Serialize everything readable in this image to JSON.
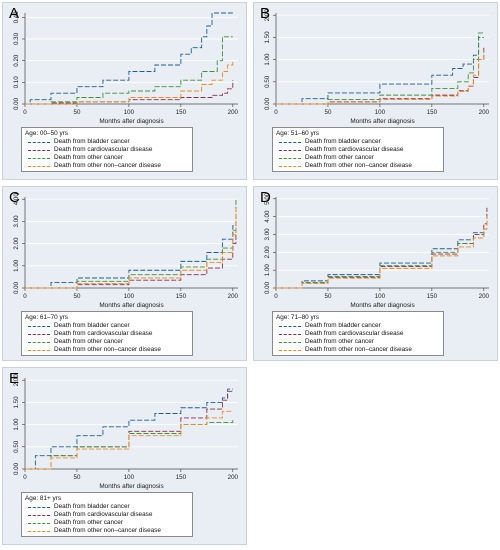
{
  "figure": {
    "colors": {
      "bladder": "#1f5c91",
      "cardio": "#8b2d4a",
      "other_cancer": "#3d8f3d",
      "non_cancer": "#f08a24",
      "panel_bg": "#e8eef3",
      "grid": "#ffffff"
    }
  },
  "chart_data": [
    {
      "panel": "A",
      "type": "line",
      "title": "",
      "xlabel": "Months after diagnosis",
      "ylabel": "",
      "xlim": [
        0,
        205
      ],
      "ylim": [
        0,
        0.42
      ],
      "xticks": [
        "0",
        "50",
        "100",
        "150",
        "200"
      ],
      "yticks": [
        "0.00",
        "0.10",
        "0.20",
        "0.30",
        "0.40"
      ],
      "grid": true,
      "legend": {
        "title": "Age: 00–50 yrs",
        "entries": [
          "Death from bladder cancer",
          "Death from cardiovascular disease",
          "Death from other cancer",
          "Death from other non–cancer disease"
        ]
      },
      "series": [
        {
          "name": "Death from bladder cancer",
          "x": [
            0,
            5,
            25,
            50,
            75,
            100,
            125,
            150,
            160,
            170,
            175,
            180,
            200
          ],
          "y": [
            0,
            0.02,
            0.05,
            0.08,
            0.11,
            0.15,
            0.18,
            0.23,
            0.26,
            0.31,
            0.36,
            0.42,
            0.42
          ]
        },
        {
          "name": "Death from cardiovascular disease",
          "x": [
            0,
            25,
            50,
            100,
            150,
            180,
            190,
            195,
            200
          ],
          "y": [
            0,
            0.005,
            0.01,
            0.02,
            0.03,
            0.04,
            0.05,
            0.07,
            0.11
          ]
        },
        {
          "name": "Death from other cancer",
          "x": [
            0,
            25,
            50,
            75,
            100,
            125,
            150,
            170,
            185,
            190,
            200
          ],
          "y": [
            0,
            0.01,
            0.03,
            0.05,
            0.06,
            0.08,
            0.11,
            0.15,
            0.2,
            0.31,
            0.31
          ]
        },
        {
          "name": "Death from other non–cancer disease",
          "x": [
            0,
            50,
            100,
            150,
            170,
            180,
            190,
            195,
            200
          ],
          "y": [
            0,
            0.01,
            0.03,
            0.06,
            0.09,
            0.11,
            0.15,
            0.18,
            0.2
          ]
        }
      ]
    },
    {
      "panel": "B",
      "type": "line",
      "title": "",
      "xlabel": "Months after diagnosis",
      "ylabel": "",
      "xlim": [
        0,
        205
      ],
      "ylim": [
        0,
        2.05
      ],
      "xticks": [
        "0",
        "50",
        "100",
        "150",
        "200"
      ],
      "yticks": [
        "0.00",
        "0.50",
        "1.00",
        "1.50",
        "2.00"
      ],
      "grid": true,
      "legend": {
        "title": "Age: 51–60 yrs",
        "entries": [
          "Death from bladder cancer",
          "Death from cardiovascular disease",
          "Death from other cancer",
          "Death from other non–cancer disease"
        ]
      },
      "series": [
        {
          "name": "Death from bladder cancer",
          "x": [
            0,
            25,
            50,
            100,
            150,
            170,
            180,
            190,
            195,
            200
          ],
          "y": [
            0,
            0.12,
            0.25,
            0.45,
            0.65,
            0.8,
            0.9,
            1.1,
            1.5,
            1.5
          ]
        },
        {
          "name": "Death from cardiovascular disease",
          "x": [
            0,
            50,
            100,
            150,
            175,
            185,
            190,
            195,
            200
          ],
          "y": [
            0,
            0.05,
            0.12,
            0.2,
            0.3,
            0.4,
            0.6,
            1.0,
            1.3
          ]
        },
        {
          "name": "Death from other cancer",
          "x": [
            0,
            50,
            100,
            150,
            175,
            185,
            190,
            195,
            200
          ],
          "y": [
            0,
            0.1,
            0.2,
            0.35,
            0.5,
            0.7,
            1.0,
            1.6,
            1.6
          ]
        },
        {
          "name": "Death from other non–cancer disease",
          "x": [
            0,
            50,
            100,
            150,
            175,
            185,
            190,
            195,
            200
          ],
          "y": [
            0,
            0.04,
            0.1,
            0.18,
            0.28,
            0.4,
            0.65,
            1.0,
            1.2
          ]
        }
      ]
    },
    {
      "panel": "C",
      "type": "line",
      "title": "",
      "xlabel": "Months after diagnosis",
      "ylabel": "",
      "xlim": [
        0,
        205
      ],
      "ylim": [
        0,
        4.1
      ],
      "xticks": [
        "0",
        "50",
        "100",
        "150",
        "200"
      ],
      "yticks": [
        "0.00",
        "1.00",
        "2.00",
        "3.00",
        "4.00"
      ],
      "grid": true,
      "legend": {
        "title": "Age: 61–70 yrs",
        "entries": [
          "Death from bladder cancer",
          "Death from cardiovascular disease",
          "Death from other cancer",
          "Death from other non–cancer disease"
        ]
      },
      "series": [
        {
          "name": "Death from bladder cancer",
          "x": [
            0,
            25,
            50,
            100,
            150,
            175,
            190,
            200,
            203
          ],
          "y": [
            0,
            0.25,
            0.45,
            0.8,
            1.2,
            1.6,
            2.2,
            2.8,
            3.5
          ]
        },
        {
          "name": "Death from cardiovascular disease",
          "x": [
            0,
            50,
            100,
            150,
            175,
            190,
            200,
            203
          ],
          "y": [
            0,
            0.15,
            0.35,
            0.6,
            0.9,
            1.3,
            2.0,
            3.0
          ]
        },
        {
          "name": "Death from other cancer",
          "x": [
            0,
            50,
            100,
            150,
            175,
            190,
            200,
            203
          ],
          "y": [
            0,
            0.3,
            0.6,
            0.95,
            1.3,
            1.8,
            2.6,
            4.0
          ]
        },
        {
          "name": "Death from other non–cancer disease",
          "x": [
            0,
            50,
            100,
            150,
            175,
            190,
            200,
            203
          ],
          "y": [
            0,
            0.2,
            0.45,
            0.8,
            1.15,
            1.6,
            2.4,
            3.6
          ]
        }
      ]
    },
    {
      "panel": "D",
      "type": "line",
      "title": "",
      "xlabel": "Months after diagnosis",
      "ylabel": "",
      "xlim": [
        0,
        205
      ],
      "ylim": [
        0,
        5.1
      ],
      "xticks": [
        "0",
        "50",
        "100",
        "150",
        "200"
      ],
      "yticks": [
        "0.00",
        "1.00",
        "2.00",
        "3.00",
        "4.00",
        "5.00"
      ],
      "grid": true,
      "legend": {
        "title": "Age: 71–80 yrs",
        "entries": [
          "Death from bladder cancer",
          "Death from cardiovascular disease",
          "Death from other cancer",
          "Death from other non–cancer disease"
        ]
      },
      "series": [
        {
          "name": "Death from bladder cancer",
          "x": [
            0,
            25,
            50,
            100,
            150,
            175,
            190,
            200
          ],
          "y": [
            0,
            0.4,
            0.75,
            1.4,
            2.2,
            2.7,
            3.1,
            3.3
          ]
        },
        {
          "name": "Death from cardiovascular disease",
          "x": [
            0,
            25,
            50,
            100,
            150,
            175,
            190,
            200,
            203
          ],
          "y": [
            0,
            0.3,
            0.6,
            1.2,
            1.9,
            2.5,
            3.0,
            3.6,
            4.5
          ]
        },
        {
          "name": "Death from other cancer",
          "x": [
            0,
            25,
            50,
            100,
            150,
            175,
            190,
            200
          ],
          "y": [
            0,
            0.3,
            0.65,
            1.25,
            2.0,
            2.5,
            2.8,
            3.2
          ]
        },
        {
          "name": "Death from other non–cancer disease",
          "x": [
            0,
            25,
            50,
            100,
            150,
            175,
            190,
            200,
            203
          ],
          "y": [
            0,
            0.25,
            0.55,
            1.1,
            1.8,
            2.3,
            2.8,
            3.3,
            4.0
          ]
        }
      ]
    },
    {
      "panel": "E",
      "type": "line",
      "title": "",
      "xlabel": "Months after diagnosis",
      "ylabel": "",
      "xlim": [
        0,
        205
      ],
      "ylim": [
        0,
        2.05
      ],
      "xticks": [
        "0",
        "50",
        "100",
        "150",
        "200"
      ],
      "yticks": [
        "0.00",
        "0.50",
        "1.00",
        "1.50",
        "2.00"
      ],
      "grid": true,
      "legend": {
        "title": "Age: 81+ yrs",
        "entries": [
          "Death from bladder cancer",
          "Death from cardiovascular disease",
          "Death from other cancer",
          "Death from other non–cancer disease"
        ]
      },
      "series": [
        {
          "name": "Death from bladder cancer",
          "x": [
            0,
            10,
            25,
            50,
            75,
            100,
            125,
            150,
            175,
            190,
            195,
            200
          ],
          "y": [
            0,
            0.3,
            0.5,
            0.75,
            0.95,
            1.1,
            1.25,
            1.38,
            1.5,
            1.6,
            1.8,
            1.8
          ]
        },
        {
          "name": "Death from cardiovascular disease",
          "x": [
            0,
            25,
            50,
            100,
            150,
            175,
            190,
            195,
            200
          ],
          "y": [
            0,
            0.3,
            0.5,
            0.85,
            1.15,
            1.35,
            1.55,
            1.75,
            1.75
          ]
        },
        {
          "name": "Death from other cancer",
          "x": [
            0,
            25,
            50,
            100,
            150,
            175,
            200
          ],
          "y": [
            0,
            0.3,
            0.5,
            0.8,
            1.0,
            1.05,
            1.1
          ]
        },
        {
          "name": "Death from other non–cancer disease",
          "x": [
            0,
            25,
            50,
            100,
            150,
            175,
            190,
            200
          ],
          "y": [
            0,
            0.25,
            0.45,
            0.75,
            1.0,
            1.15,
            1.3,
            1.3
          ]
        }
      ]
    }
  ]
}
